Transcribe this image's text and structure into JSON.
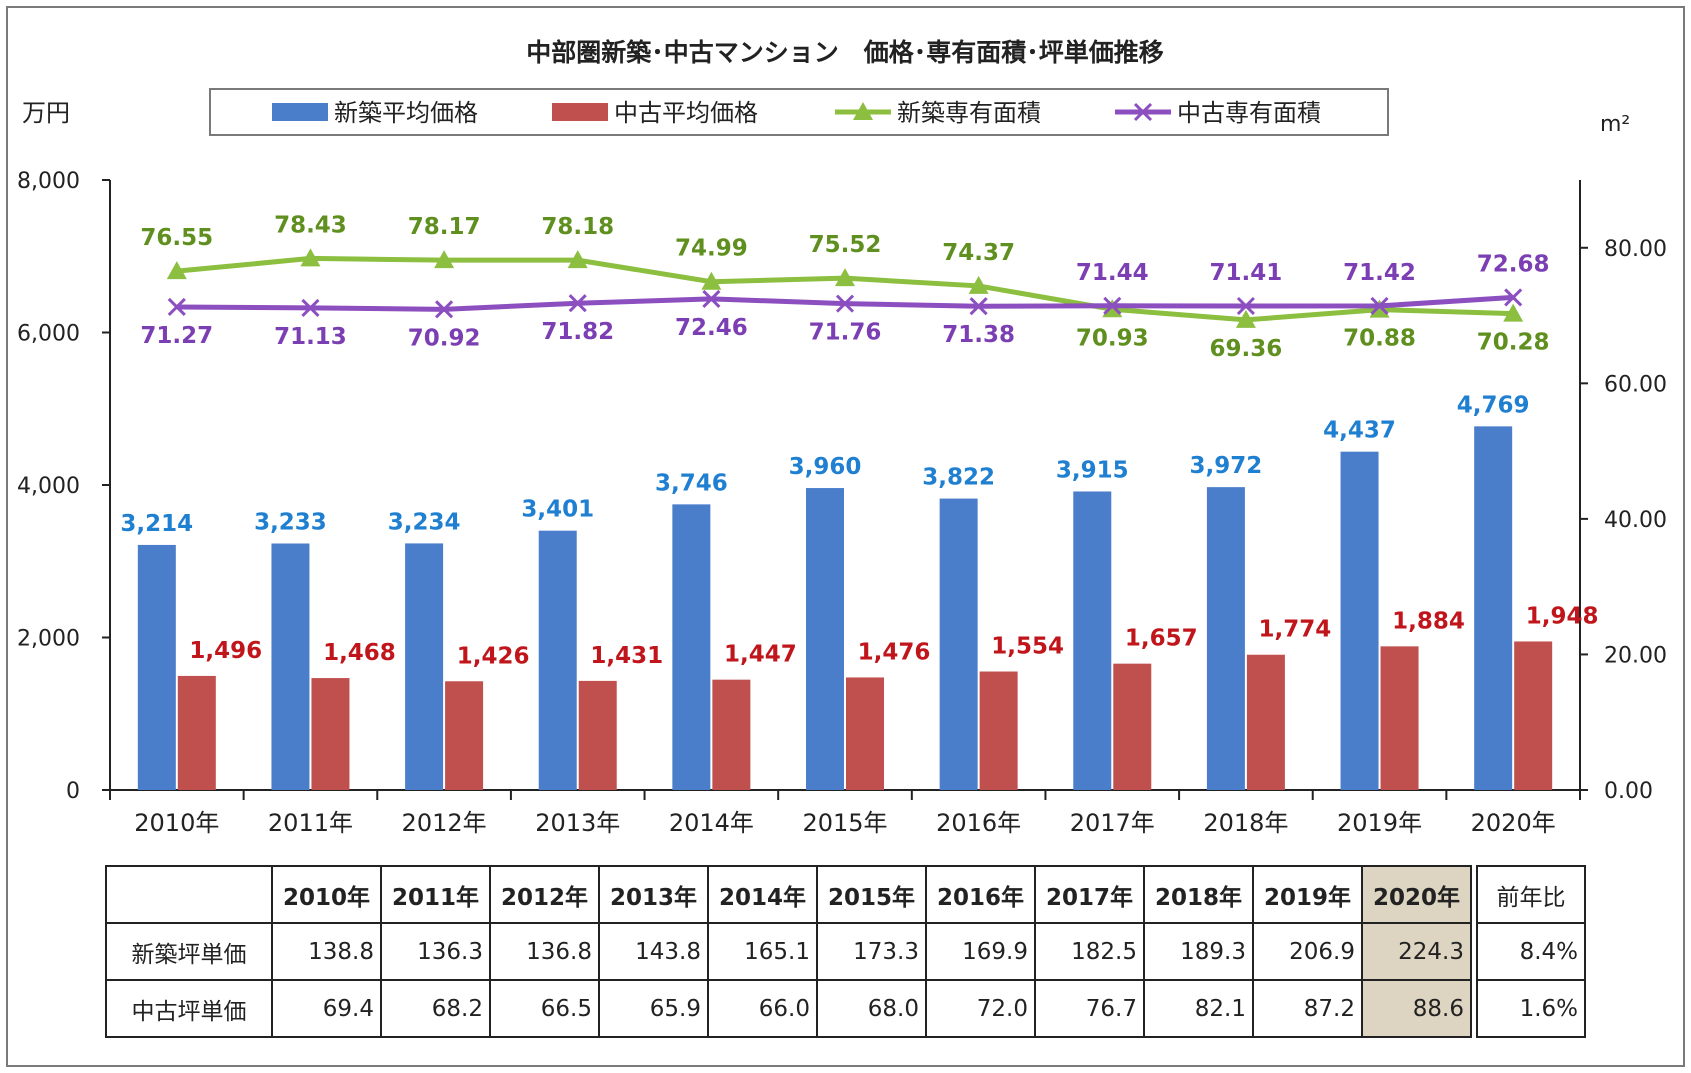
{
  "chart_data": {
    "type": "bar",
    "title": "中部圏新築･中古マンション　価格･専有面積･坪単価推移",
    "left_axis": {
      "unit": "万円",
      "ylim": [
        0,
        8000
      ],
      "ticks": [
        "0",
        "2,000",
        "4,000",
        "6,000",
        "8,000"
      ]
    },
    "right_axis": {
      "unit": "m²",
      "ylim": [
        0,
        90
      ],
      "ticks": [
        "0.00",
        "20.00",
        "40.00",
        "60.00",
        "80.00"
      ]
    },
    "categories": [
      "2010年",
      "2011年",
      "2012年",
      "2013年",
      "2014年",
      "2015年",
      "2016年",
      "2017年",
      "2018年",
      "2019年",
      "2020年"
    ],
    "legend_position": "top",
    "series": [
      {
        "name": "新築平均価格",
        "kind": "bar",
        "axis": "left",
        "color": "#4a7ecb",
        "values": [
          3214,
          3233,
          3234,
          3401,
          3746,
          3960,
          3822,
          3915,
          3972,
          4437,
          4769
        ],
        "labels": [
          "3,214",
          "3,233",
          "3,234",
          "3,401",
          "3,746",
          "3,960",
          "3,822",
          "3,915",
          "3,972",
          "4,437",
          "4,769"
        ],
        "label_color": "#1f7fd0"
      },
      {
        "name": "中古平均価格",
        "kind": "bar",
        "axis": "left",
        "color": "#c0504d",
        "values": [
          1496,
          1468,
          1426,
          1431,
          1447,
          1476,
          1554,
          1657,
          1774,
          1884,
          1948
        ],
        "labels": [
          "1,496",
          "1,468",
          "1,426",
          "1,431",
          "1,447",
          "1,476",
          "1,554",
          "1,657",
          "1,774",
          "1,884",
          "1,948"
        ],
        "label_color": "#c0161b"
      },
      {
        "name": "新築専有面積",
        "kind": "line",
        "marker": "triangle",
        "axis": "right",
        "color": "#8cbf3f",
        "values": [
          76.55,
          78.43,
          78.17,
          78.18,
          74.99,
          75.52,
          74.37,
          70.93,
          69.36,
          70.88,
          70.28
        ],
        "labels": [
          "76.55",
          "78.43",
          "78.17",
          "78.18",
          "74.99",
          "75.52",
          "74.37",
          "70.93",
          "69.36",
          "70.88",
          "70.28"
        ],
        "label_color": "#5f8f1e"
      },
      {
        "name": "中古専有面積",
        "kind": "line",
        "marker": "x",
        "axis": "right",
        "color": "#8c4fc0",
        "values": [
          71.27,
          71.13,
          70.92,
          71.82,
          72.46,
          71.76,
          71.38,
          71.44,
          71.41,
          71.42,
          72.68
        ],
        "labels": [
          "71.27",
          "71.13",
          "70.92",
          "71.82",
          "72.46",
          "71.76",
          "71.38",
          "71.44",
          "71.41",
          "71.42",
          "72.68"
        ],
        "label_color": "#7b3fb3"
      }
    ]
  },
  "table": {
    "header": [
      "",
      "2010年",
      "2011年",
      "2012年",
      "2013年",
      "2014年",
      "2015年",
      "2016年",
      "2017年",
      "2018年",
      "2019年",
      "2020年",
      "前年比"
    ],
    "rows": [
      {
        "label": "新築坪単価",
        "values": [
          "138.8",
          "136.3",
          "136.8",
          "143.8",
          "165.1",
          "173.3",
          "169.9",
          "182.5",
          "189.3",
          "206.9",
          "224.3"
        ],
        "yoy": "8.4%"
      },
      {
        "label": "中古坪単価",
        "values": [
          "69.4",
          "68.2",
          "66.5",
          "65.9",
          "66.0",
          "68.0",
          "72.0",
          "76.7",
          "82.1",
          "87.2",
          "88.6"
        ],
        "yoy": "1.6%"
      }
    ],
    "highlight_color": "#ddd5c2"
  }
}
